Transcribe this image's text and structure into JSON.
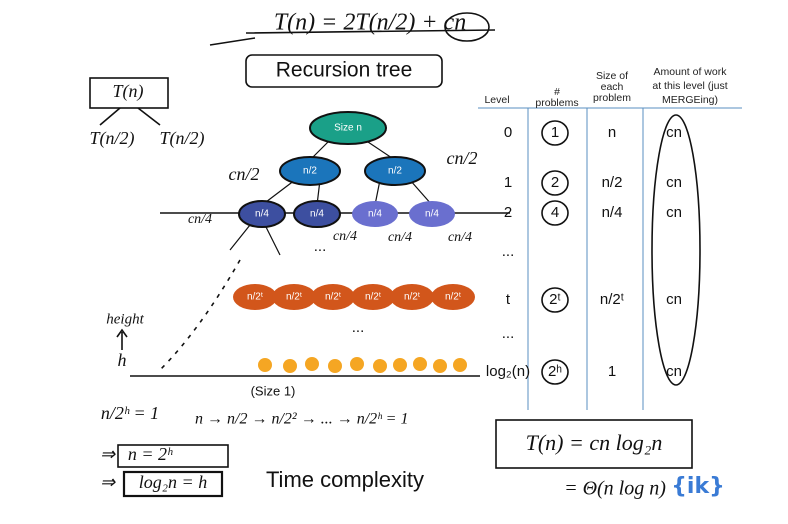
{
  "title": "T(n) = 2T(n/2) + cn",
  "subtitle": "Recursion tree",
  "left_notes": {
    "root": "T(n)",
    "children": [
      "T(n/2)",
      "T(n/2)"
    ]
  },
  "table": {
    "headers": [
      "Level",
      "# problems",
      "Size of each problem",
      "Amount of work at this level (just MERGEing)"
    ],
    "rows": [
      {
        "level": "0",
        "problems": "1",
        "size": "n",
        "work": "cn"
      },
      {
        "level": "1",
        "problems": "2",
        "size": "n/2",
        "work": "cn"
      },
      {
        "level": "2",
        "problems": "4",
        "size": "n/4",
        "work": "cn"
      },
      {
        "level": "..."
      },
      {
        "level": "t",
        "problems": "2ᵗ",
        "size": "n/2ᵗ",
        "work": "cn"
      },
      {
        "level": "..."
      },
      {
        "level": "log₂(n)",
        "problems": "2ʰ",
        "size": "1",
        "work": "cn"
      }
    ]
  },
  "tree": {
    "root": "Size n",
    "level1": [
      "n/2",
      "n/2"
    ],
    "level2": [
      "n/4",
      "n/4",
      "n/4",
      "n/4"
    ],
    "levelt": [
      "n/2ᵗ",
      "n/2ᵗ",
      "n/2ᵗ",
      "n/2ᵗ",
      "n/2ᵗ",
      "n/2ᵗ"
    ],
    "leaf_note": "(Size 1)",
    "dots": "..."
  },
  "annotations": {
    "cn_half": [
      "cn/2",
      "cn/2"
    ],
    "cn_quarter": [
      "cn/4",
      "cn/4",
      "cn/4",
      "cn/4"
    ],
    "height": "height",
    "h": "h"
  },
  "derivation": [
    "n/2ʰ = 1",
    "n = 2ʰ",
    "log₂n = h"
  ],
  "chain": "n → n/2 → n/2² → ... → n/2ʰ = 1",
  "result": {
    "heading": "Time complexity",
    "line1": "T(n) = cn log₂n",
    "line2": "= Θ(n log n)"
  },
  "logo": "{ik}"
}
